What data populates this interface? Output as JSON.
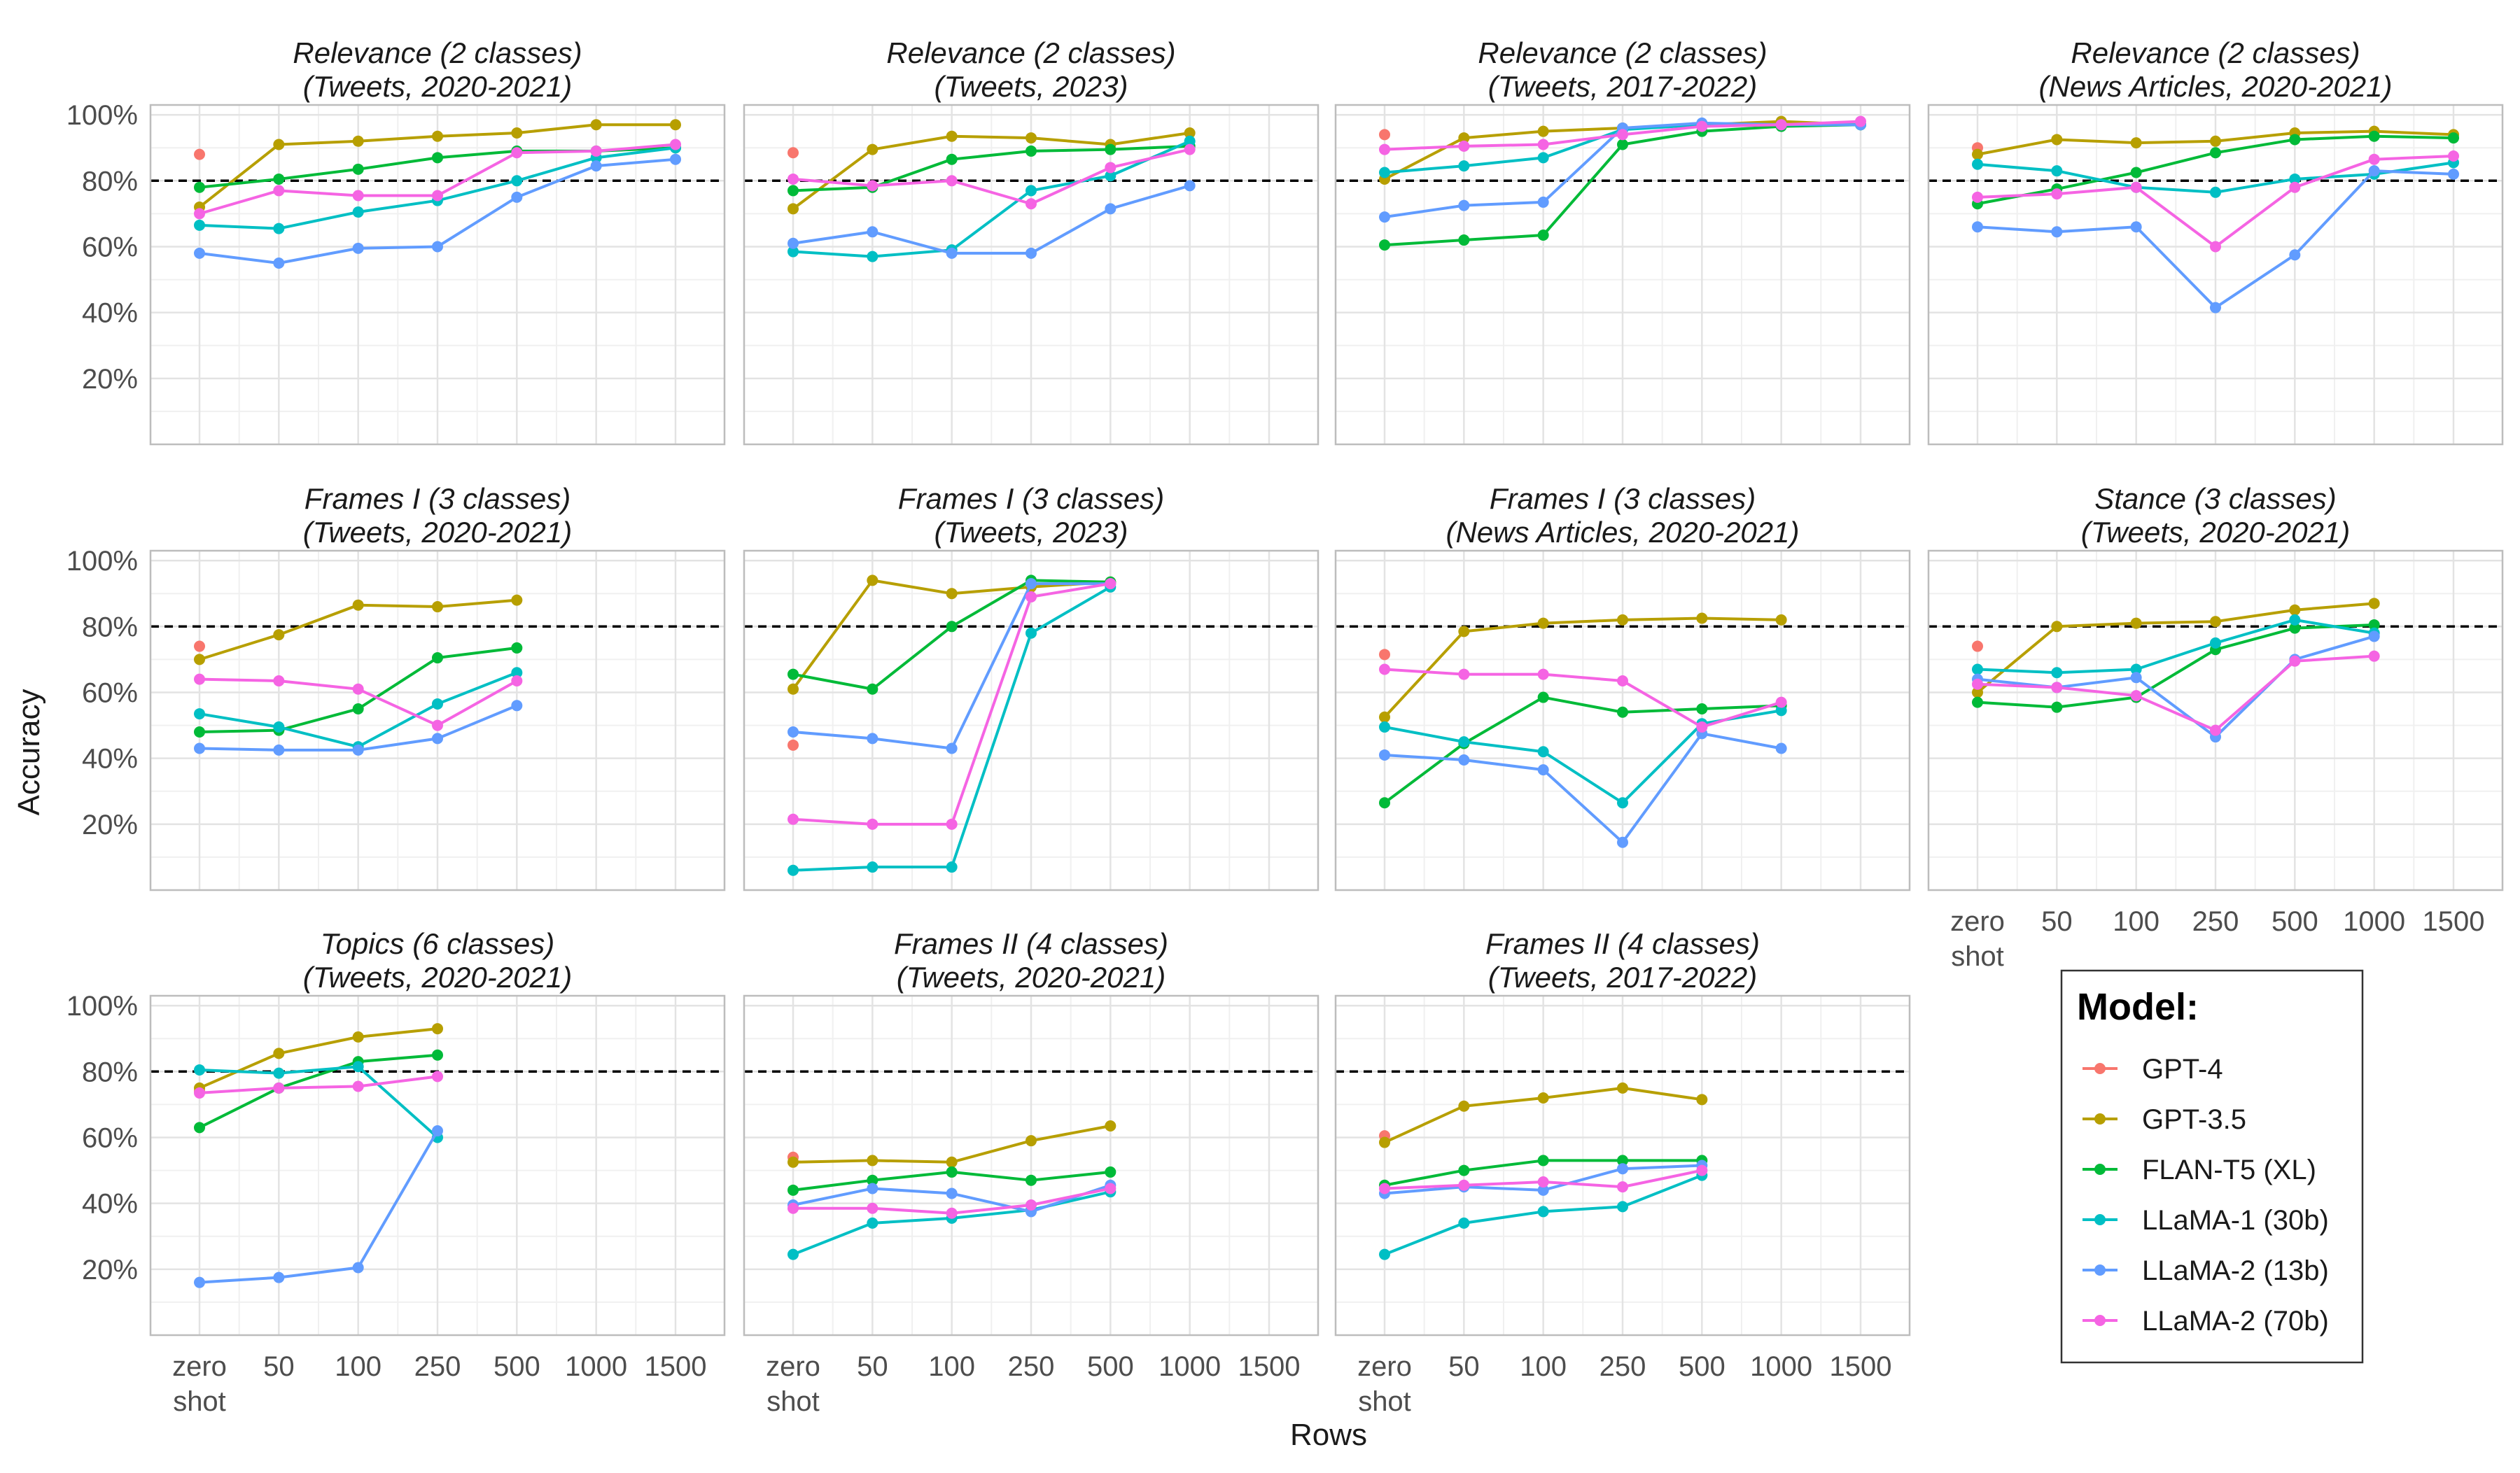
{
  "figure": {
    "xlabel": "Rows",
    "ylabel": "Accuracy",
    "reference_line": 80,
    "x_ticks": [
      "zero shot",
      "50",
      "100",
      "250",
      "500",
      "1000",
      "1500"
    ],
    "y_ticks": [
      "20%",
      "40%",
      "60%",
      "80%",
      "100%"
    ],
    "legend": {
      "title": "Model:",
      "items": [
        "GPT-4",
        "GPT-3.5",
        "FLAN-T5 (XL)",
        "LLaMA-1 (30b)",
        "LLaMA-2 (13b)",
        "LLaMA-2 (70b)"
      ]
    },
    "colors": {
      "GPT-4": "#F8766D",
      "GPT-3.5": "#B79F00",
      "FLAN-T5 (XL)": "#00BA38",
      "LLaMA-1 (30b)": "#00BFC4",
      "LLaMA-2 (13b)": "#619CFF",
      "LLaMA-2 (70b)": "#F564E3"
    }
  },
  "chart_data": [
    {
      "type": "line",
      "title_line1": "Relevance (2 classes)",
      "title_line2": "(Tweets, 2020-2021)",
      "xlabel": "Rows",
      "ylabel": "Accuracy",
      "ylim": [
        0,
        100
      ],
      "categories": [
        "zero shot",
        "50",
        "100",
        "250",
        "500",
        "1000",
        "1500"
      ],
      "series": [
        {
          "name": "GPT-4",
          "values": [
            88,
            null,
            null,
            null,
            null,
            null,
            null
          ]
        },
        {
          "name": "GPT-3.5",
          "values": [
            72,
            91,
            92,
            93.5,
            94.5,
            97,
            97
          ]
        },
        {
          "name": "FLAN-T5 (XL)",
          "values": [
            78,
            80.5,
            83.5,
            87,
            89,
            89,
            90
          ]
        },
        {
          "name": "LLaMA-1 (30b)",
          "values": [
            66.5,
            65.5,
            70.5,
            74,
            80,
            87,
            90
          ]
        },
        {
          "name": "LLaMA-2 (13b)",
          "values": [
            58,
            55,
            59.5,
            60,
            75,
            84.5,
            86.5
          ]
        },
        {
          "name": "LLaMA-2 (70b)",
          "values": [
            70,
            77,
            75.5,
            75.5,
            88.5,
            89,
            91
          ]
        }
      ]
    },
    {
      "type": "line",
      "title_line1": "Relevance (2 classes)",
      "title_line2": "(Tweets, 2023)",
      "xlabel": "Rows",
      "ylabel": "Accuracy",
      "ylim": [
        0,
        100
      ],
      "categories": [
        "zero shot",
        "50",
        "100",
        "250",
        "500",
        "1000",
        "1500"
      ],
      "series": [
        {
          "name": "GPT-4",
          "values": [
            88.5,
            null,
            null,
            null,
            null,
            null,
            null
          ]
        },
        {
          "name": "GPT-3.5",
          "values": [
            71.5,
            89.5,
            93.5,
            93,
            91,
            94.5,
            null
          ]
        },
        {
          "name": "FLAN-T5 (XL)",
          "values": [
            77,
            78,
            86.5,
            89,
            89.5,
            90.5,
            null
          ]
        },
        {
          "name": "LLaMA-1 (30b)",
          "values": [
            58.5,
            57,
            59,
            77,
            81.5,
            92,
            null
          ]
        },
        {
          "name": "LLaMA-2 (13b)",
          "values": [
            61,
            64.5,
            58,
            58,
            71.5,
            78.5,
            null
          ]
        },
        {
          "name": "LLaMA-2 (70b)",
          "values": [
            80.5,
            78.5,
            80,
            73,
            84,
            89.5,
            null
          ]
        }
      ]
    },
    {
      "type": "line",
      "title_line1": "Relevance (2 classes)",
      "title_line2": "(Tweets, 2017-2022)",
      "xlabel": "Rows",
      "ylabel": "Accuracy",
      "ylim": [
        0,
        100
      ],
      "categories": [
        "zero shot",
        "50",
        "100",
        "250",
        "500",
        "1000",
        "1500"
      ],
      "series": [
        {
          "name": "GPT-4",
          "values": [
            94,
            null,
            null,
            null,
            null,
            null,
            null
          ]
        },
        {
          "name": "GPT-3.5",
          "values": [
            80.5,
            93,
            95,
            96,
            97,
            98,
            97
          ]
        },
        {
          "name": "FLAN-T5 (XL)",
          "values": [
            60.5,
            62,
            63.5,
            91,
            95,
            96.5,
            97
          ]
        },
        {
          "name": "LLaMA-1 (30b)",
          "values": [
            82.5,
            84.5,
            87,
            95.5,
            97,
            97,
            97
          ]
        },
        {
          "name": "LLaMA-2 (13b)",
          "values": [
            69,
            72.5,
            73.5,
            96,
            97.5,
            97,
            97
          ]
        },
        {
          "name": "LLaMA-2 (70b)",
          "values": [
            89.5,
            90.5,
            91,
            94,
            96.5,
            97,
            98
          ]
        }
      ]
    },
    {
      "type": "line",
      "title_line1": "Relevance (2 classes)",
      "title_line2": "(News Articles, 2020-2021)",
      "xlabel": "Rows",
      "ylabel": "Accuracy",
      "ylim": [
        0,
        100
      ],
      "categories": [
        "zero shot",
        "50",
        "100",
        "250",
        "500",
        "1000",
        "1500"
      ],
      "series": [
        {
          "name": "GPT-4",
          "values": [
            90,
            null,
            null,
            null,
            null,
            null,
            null
          ]
        },
        {
          "name": "GPT-3.5",
          "values": [
            88,
            92.5,
            91.5,
            92,
            94.5,
            95,
            94
          ]
        },
        {
          "name": "FLAN-T5 (XL)",
          "values": [
            73,
            77.5,
            82.5,
            88.5,
            92.5,
            93.5,
            93
          ]
        },
        {
          "name": "LLaMA-1 (30b)",
          "values": [
            85,
            83,
            78,
            76.5,
            80.5,
            82,
            85.5
          ]
        },
        {
          "name": "LLaMA-2 (13b)",
          "values": [
            66,
            64.5,
            66,
            41.5,
            57.5,
            83,
            82
          ]
        },
        {
          "name": "LLaMA-2 (70b)",
          "values": [
            75,
            76,
            78,
            60,
            78,
            86.5,
            87.5
          ]
        }
      ]
    },
    {
      "type": "line",
      "title_line1": "Frames I (3 classes)",
      "title_line2": "(Tweets, 2020-2021)",
      "xlabel": "Rows",
      "ylabel": "Accuracy",
      "ylim": [
        0,
        100
      ],
      "categories": [
        "zero shot",
        "50",
        "100",
        "250",
        "500",
        "1000",
        "1500"
      ],
      "series": [
        {
          "name": "GPT-4",
          "values": [
            74,
            null,
            null,
            null,
            null,
            null,
            null
          ]
        },
        {
          "name": "GPT-3.5",
          "values": [
            70,
            77.5,
            86.5,
            86,
            88,
            null,
            null
          ]
        },
        {
          "name": "FLAN-T5 (XL)",
          "values": [
            48,
            48.5,
            55,
            70.5,
            73.5,
            null,
            null
          ]
        },
        {
          "name": "LLaMA-1 (30b)",
          "values": [
            53.5,
            49.5,
            43.5,
            56.5,
            66,
            null,
            null
          ]
        },
        {
          "name": "LLaMA-2 (13b)",
          "values": [
            43,
            42.5,
            42.5,
            46,
            56,
            null,
            null
          ]
        },
        {
          "name": "LLaMA-2 (70b)",
          "values": [
            64,
            63.5,
            61,
            50,
            63.5,
            null,
            null
          ]
        }
      ]
    },
    {
      "type": "line",
      "title_line1": "Frames I (3 classes)",
      "title_line2": "(Tweets, 2023)",
      "xlabel": "Rows",
      "ylabel": "Accuracy",
      "ylim": [
        0,
        100
      ],
      "categories": [
        "zero shot",
        "50",
        "100",
        "250",
        "500",
        "1000",
        "1500"
      ],
      "series": [
        {
          "name": "GPT-4",
          "values": [
            44,
            null,
            null,
            null,
            null,
            null,
            null
          ]
        },
        {
          "name": "GPT-3.5",
          "values": [
            61,
            94,
            90,
            92,
            93.5,
            null,
            null
          ]
        },
        {
          "name": "FLAN-T5 (XL)",
          "values": [
            65.5,
            61,
            80,
            94,
            93.5,
            null,
            null
          ]
        },
        {
          "name": "LLaMA-1 (30b)",
          "values": [
            6,
            7,
            7,
            78,
            92,
            null,
            null
          ]
        },
        {
          "name": "LLaMA-2 (13b)",
          "values": [
            48,
            46,
            43,
            93,
            93,
            null,
            null
          ]
        },
        {
          "name": "LLaMA-2 (70b)",
          "values": [
            21.5,
            20,
            20,
            89,
            93,
            null,
            null
          ]
        }
      ]
    },
    {
      "type": "line",
      "title_line1": "Frames I (3 classes)",
      "title_line2": "(News Articles, 2020-2021)",
      "xlabel": "Rows",
      "ylabel": "Accuracy",
      "ylim": [
        0,
        100
      ],
      "categories": [
        "zero shot",
        "50",
        "100",
        "250",
        "500",
        "1000",
        "1500"
      ],
      "series": [
        {
          "name": "GPT-4",
          "values": [
            71.5,
            null,
            null,
            null,
            null,
            null,
            null
          ]
        },
        {
          "name": "GPT-3.5",
          "values": [
            52.5,
            78.5,
            81,
            82,
            82.5,
            82,
            null
          ]
        },
        {
          "name": "FLAN-T5 (XL)",
          "values": [
            26.5,
            44.5,
            58.5,
            54,
            55,
            56,
            null
          ]
        },
        {
          "name": "LLaMA-1 (30b)",
          "values": [
            49.5,
            45,
            42,
            26.5,
            50.5,
            54.5,
            null
          ]
        },
        {
          "name": "LLaMA-2 (13b)",
          "values": [
            41,
            39.5,
            36.5,
            14.5,
            47.5,
            43,
            null
          ]
        },
        {
          "name": "LLaMA-2 (70b)",
          "values": [
            67,
            65.5,
            65.5,
            63.5,
            49.5,
            57,
            null
          ]
        }
      ]
    },
    {
      "type": "line",
      "title_line1": "Stance (3 classes)",
      "title_line2": "(Tweets, 2020-2021)",
      "xlabel": "Rows",
      "ylabel": "Accuracy",
      "ylim": [
        0,
        100
      ],
      "categories": [
        "zero shot",
        "50",
        "100",
        "250",
        "500",
        "1000",
        "1500"
      ],
      "series": [
        {
          "name": "GPT-4",
          "values": [
            74,
            null,
            null,
            null,
            null,
            null,
            null
          ]
        },
        {
          "name": "GPT-3.5",
          "values": [
            60,
            80,
            81,
            81.5,
            85,
            87,
            null
          ]
        },
        {
          "name": "FLAN-T5 (XL)",
          "values": [
            57,
            55.5,
            58.5,
            73,
            79.5,
            80.5,
            null
          ]
        },
        {
          "name": "LLaMA-1 (30b)",
          "values": [
            67,
            66,
            67,
            75,
            82,
            78,
            null
          ]
        },
        {
          "name": "LLaMA-2 (13b)",
          "values": [
            64,
            61.5,
            64.5,
            46.5,
            70,
            77,
            null
          ]
        },
        {
          "name": "LLaMA-2 (70b)",
          "values": [
            62.5,
            61.5,
            59,
            48.5,
            69.5,
            71,
            null
          ]
        }
      ]
    },
    {
      "type": "line",
      "title_line1": "Topics (6 classes)",
      "title_line2": "(Tweets, 2020-2021)",
      "xlabel": "Rows",
      "ylabel": "Accuracy",
      "ylim": [
        0,
        100
      ],
      "categories": [
        "zero shot",
        "50",
        "100",
        "250",
        "500",
        "1000",
        "1500"
      ],
      "series": [
        {
          "name": "GPT-4",
          "values": [
            74,
            null,
            null,
            null,
            null,
            null,
            null
          ]
        },
        {
          "name": "GPT-3.5",
          "values": [
            75,
            85.5,
            90.5,
            93,
            null,
            null,
            null
          ]
        },
        {
          "name": "FLAN-T5 (XL)",
          "values": [
            63,
            75,
            83,
            85,
            null,
            null,
            null
          ]
        },
        {
          "name": "LLaMA-1 (30b)",
          "values": [
            80.5,
            79.5,
            81.5,
            60,
            null,
            null,
            null
          ]
        },
        {
          "name": "LLaMA-2 (13b)",
          "values": [
            16,
            17.5,
            20.5,
            62,
            null,
            null,
            null
          ]
        },
        {
          "name": "LLaMA-2 (70b)",
          "values": [
            73.5,
            75,
            75.5,
            78.5,
            null,
            null,
            null
          ]
        }
      ]
    },
    {
      "type": "line",
      "title_line1": "Frames II (4 classes)",
      "title_line2": "(Tweets, 2020-2021)",
      "xlabel": "Rows",
      "ylabel": "Accuracy",
      "ylim": [
        0,
        100
      ],
      "categories": [
        "zero shot",
        "50",
        "100",
        "250",
        "500",
        "1000",
        "1500"
      ],
      "series": [
        {
          "name": "GPT-4",
          "values": [
            54,
            null,
            null,
            null,
            null,
            null,
            null
          ]
        },
        {
          "name": "GPT-3.5",
          "values": [
            52.5,
            53,
            52.5,
            59,
            63.5,
            null,
            null
          ]
        },
        {
          "name": "FLAN-T5 (XL)",
          "values": [
            44,
            47,
            49.5,
            47,
            49.5,
            null,
            null
          ]
        },
        {
          "name": "LLaMA-1 (30b)",
          "values": [
            24.5,
            34,
            35.5,
            38,
            43.5,
            null,
            null
          ]
        },
        {
          "name": "LLaMA-2 (13b)",
          "values": [
            39.5,
            44.5,
            43,
            37.5,
            45.5,
            null,
            null
          ]
        },
        {
          "name": "LLaMA-2 (70b)",
          "values": [
            38.5,
            38.5,
            37,
            39.5,
            44.5,
            null,
            null
          ]
        }
      ]
    },
    {
      "type": "line",
      "title_line1": "Frames II (4 classes)",
      "title_line2": "(Tweets, 2017-2022)",
      "xlabel": "Rows",
      "ylabel": "Accuracy",
      "ylim": [
        0,
        100
      ],
      "categories": [
        "zero shot",
        "50",
        "100",
        "250",
        "500",
        "1000",
        "1500"
      ],
      "series": [
        {
          "name": "GPT-4",
          "values": [
            60.5,
            null,
            null,
            null,
            null,
            null,
            null
          ]
        },
        {
          "name": "GPT-3.5",
          "values": [
            58.5,
            69.5,
            72,
            75,
            71.5,
            null,
            null
          ]
        },
        {
          "name": "FLAN-T5 (XL)",
          "values": [
            45.5,
            50,
            53,
            53,
            53,
            null,
            null
          ]
        },
        {
          "name": "LLaMA-1 (30b)",
          "values": [
            24.5,
            34,
            37.5,
            39,
            48.5,
            null,
            null
          ]
        },
        {
          "name": "LLaMA-2 (13b)",
          "values": [
            43,
            45,
            44,
            50.5,
            51.5,
            null,
            null
          ]
        },
        {
          "name": "LLaMA-2 (70b)",
          "values": [
            44.5,
            45.5,
            46.5,
            45,
            50,
            null,
            null
          ]
        }
      ]
    }
  ]
}
